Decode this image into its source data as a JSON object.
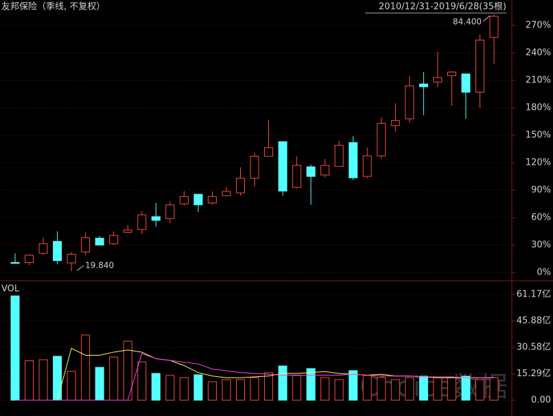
{
  "chart_data": [
    {
      "type": "candlestick",
      "title": "友邦保险（季线, 不复权）",
      "subtitle": "2010/12/31-2019/6/28(35根)",
      "open": [
        11,
        11,
        21,
        34,
        10.5,
        22.5,
        37.5,
        31.5,
        44,
        47,
        61,
        59,
        75,
        85.5,
        76,
        84,
        87,
        103,
        127,
        143,
        93,
        115.5,
        106.5,
        116,
        142,
        105,
        127.5,
        160.5,
        168,
        206,
        208,
        215,
        217,
        197,
        257
      ],
      "high": [
        21,
        20,
        38,
        45,
        22.5,
        44,
        40,
        45,
        52,
        67,
        76,
        78,
        89,
        86,
        88.5,
        94,
        115,
        131,
        167,
        143,
        127,
        118,
        124,
        144,
        149,
        136.5,
        169.5,
        185,
        215,
        219,
        241,
        220,
        217,
        260,
        282
      ],
      "low": [
        9.5,
        8,
        19.5,
        9,
        1.5,
        19,
        30,
        30,
        43.5,
        42,
        50,
        54,
        73,
        66,
        74,
        84,
        84,
        94,
        127,
        84,
        92,
        74,
        104,
        116,
        101,
        103,
        124.5,
        154,
        164,
        172,
        202.5,
        182,
        168,
        180,
        228
      ],
      "close": [
        10,
        19,
        31.5,
        13,
        20,
        38,
        30,
        40.5,
        46.5,
        63,
        57,
        74,
        83,
        74,
        83,
        88.5,
        103,
        127,
        136.5,
        89,
        117,
        105,
        117,
        139,
        103.5,
        127.5,
        163,
        166,
        204,
        203,
        213,
        219,
        197,
        254,
        280
      ],
      "up_color": "#ff4a3d",
      "down_color": "#54ffff",
      "ylim": [
        -8.25,
        297.75
      ],
      "yticks": [
        {
          "value": 0,
          "label": "0%"
        },
        {
          "value": 30,
          "label": "30%"
        },
        {
          "value": 60,
          "label": "60%"
        },
        {
          "value": 90,
          "label": "90%"
        },
        {
          "value": 120,
          "label": "120%"
        },
        {
          "value": 150,
          "label": "150%"
        },
        {
          "value": 180,
          "label": "180%"
        },
        {
          "value": 210,
          "label": "210%"
        },
        {
          "value": 240,
          "label": "240%"
        },
        {
          "value": 270,
          "label": "270%"
        }
      ],
      "grid": true,
      "annotations": [
        "84.400",
        "19.840"
      ]
    },
    {
      "type": "bar",
      "title": "VOL",
      "watermark": "Choice数据",
      "values": [
        60.3,
        22.8,
        23.4,
        25.4,
        16.7,
        37.7,
        19.0,
        25.0,
        34.1,
        22.2,
        15.5,
        14.3,
        13.1,
        14.7,
        10.7,
        11.9,
        11.9,
        13.1,
        15.9,
        19.8,
        14.3,
        18.3,
        13.1,
        11.9,
        17.1,
        14.3,
        13.1,
        11.9,
        13.1,
        13.9,
        13.5,
        13.1,
        13.9,
        11.9,
        13.1
      ],
      "lines": [
        {
          "color": "#ffff40",
          "values": [
            0,
            0,
            0,
            0,
            30,
            26,
            26,
            27.8,
            29,
            27.8,
            24,
            23,
            20,
            16,
            14,
            13,
            13,
            13.5,
            14,
            15.5,
            15.5,
            16,
            16.5,
            15.5,
            15,
            14.5,
            15,
            14,
            14,
            13.5,
            13,
            13,
            13,
            13,
            13
          ]
        },
        {
          "color": "#ff40ff",
          "values": [
            0,
            0,
            0,
            0,
            0,
            0,
            0,
            0,
            0,
            27,
            24,
            23,
            22,
            21,
            18,
            17,
            16,
            15.5,
            15,
            14.5,
            14.5,
            14.5,
            14.5,
            14.5,
            15,
            14.5,
            14,
            14,
            14,
            13.5,
            13.5,
            13.5,
            13,
            13,
            13
          ]
        }
      ],
      "ylim": [
        0,
        66.67
      ],
      "yticks": [
        {
          "value": 0,
          "label": "0.00"
        },
        {
          "value": 15.29,
          "label": "15.29亿"
        },
        {
          "value": 30.58,
          "label": "30.58亿"
        },
        {
          "value": 45.88,
          "label": "45.88亿"
        },
        {
          "value": 61.17,
          "label": "61.17亿"
        }
      ],
      "grid": true
    }
  ]
}
